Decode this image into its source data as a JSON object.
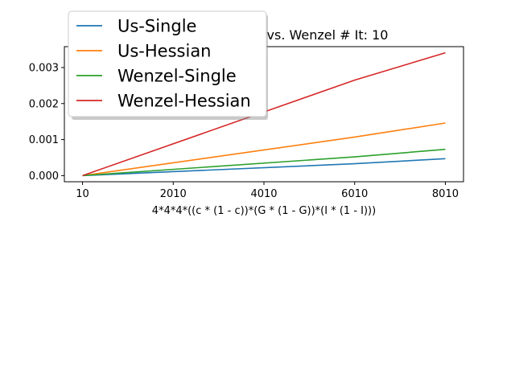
{
  "chart_data": {
    "type": "line",
    "title": "vs. Wenzel # It: 10",
    "xlabel": "4*4*4*((c * (1 - c))*(G * (1 - G))*(I * (1 - I)))",
    "ylabel": "",
    "x": [
      10,
      6010,
      8010
    ],
    "xticks": [
      "10",
      "2010",
      "4010",
      "6010",
      "8010"
    ],
    "xtick_values": [
      10,
      2010,
      4010,
      6010,
      8010
    ],
    "yticks": [
      "0.000",
      "0.001",
      "0.002",
      "0.003"
    ],
    "ytick_values": [
      0,
      0.001,
      0.002,
      0.003
    ],
    "xlim": [
      -390,
      8410
    ],
    "ylim": [
      -0.00017,
      0.00358
    ],
    "grid": false,
    "legend_position": "top-left",
    "series": [
      {
        "name": "Us-Single",
        "color": "#1f77b4",
        "values": [
          0.0,
          0.00033,
          0.00047
        ]
      },
      {
        "name": "Us-Hessian",
        "color": "#ff7f0e",
        "values": [
          0.0,
          0.00107,
          0.00146
        ]
      },
      {
        "name": "Wenzel-Single",
        "color": "#2ca02c",
        "values": [
          0.0,
          0.00052,
          0.00073
        ]
      },
      {
        "name": "Wenzel-Hessian",
        "color": "#d62728",
        "values": [
          0.0,
          0.00265,
          0.00341
        ]
      }
    ]
  }
}
